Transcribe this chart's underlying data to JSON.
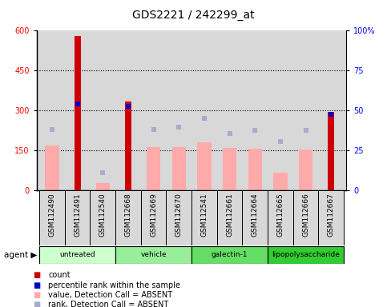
{
  "title": "GDS2221 / 242299_at",
  "samples": [
    "GSM112490",
    "GSM112491",
    "GSM112540",
    "GSM112668",
    "GSM112669",
    "GSM112670",
    "GSM112541",
    "GSM112661",
    "GSM112664",
    "GSM112665",
    "GSM112666",
    "GSM112667"
  ],
  "groups": [
    {
      "label": "untreated",
      "indices": [
        0,
        1,
        2
      ],
      "color": "#ccffcc"
    },
    {
      "label": "vehicle",
      "indices": [
        3,
        4,
        5
      ],
      "color": "#99ee99"
    },
    {
      "label": "galectin-1",
      "indices": [
        6,
        7,
        8
      ],
      "color": "#66dd66"
    },
    {
      "label": "lipopolysaccharide",
      "indices": [
        9,
        10,
        11
      ],
      "color": "#33cc33"
    }
  ],
  "count_bars": [
    0,
    580,
    0,
    335,
    0,
    0,
    0,
    0,
    0,
    0,
    0,
    295
  ],
  "value_bars": [
    170,
    0,
    28,
    0,
    163,
    162,
    180,
    158,
    155,
    65,
    153,
    0
  ],
  "percentile_markers": [
    0,
    325,
    0,
    315,
    0,
    0,
    0,
    0,
    0,
    0,
    0,
    285
  ],
  "rank_markers": [
    230,
    0,
    65,
    0,
    230,
    238,
    270,
    215,
    225,
    185,
    225,
    0
  ],
  "left_ylim": [
    0,
    600
  ],
  "right_ylim": [
    0,
    100
  ],
  "left_yticks": [
    0,
    150,
    300,
    450,
    600
  ],
  "right_yticks": [
    0,
    25,
    50,
    75,
    100
  ],
  "right_yticklabels": [
    "0",
    "25",
    "50",
    "75",
    "100%"
  ],
  "count_color": "#cc0000",
  "value_color": "#ffaaaa",
  "percentile_color": "#0000cc",
  "rank_color": "#aaaacc",
  "plot_bg": "#d8d8d8",
  "title_fontsize": 10,
  "tick_fontsize": 7,
  "legend_fontsize": 7,
  "legend_items": [
    {
      "color": "#cc0000",
      "label": "count"
    },
    {
      "color": "#0000cc",
      "label": "percentile rank within the sample"
    },
    {
      "color": "#ffaaaa",
      "label": "value, Detection Call = ABSENT"
    },
    {
      "color": "#aaaacc",
      "label": "rank, Detection Call = ABSENT"
    }
  ]
}
